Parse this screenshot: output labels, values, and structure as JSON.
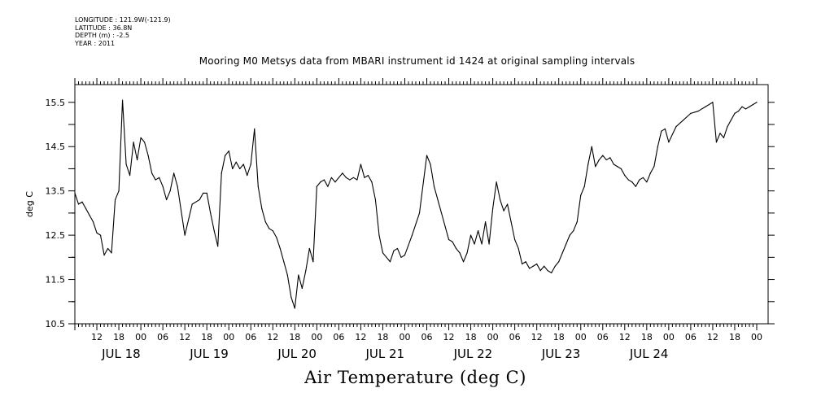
{
  "meta": {
    "longitude": "LONGITUDE : 121.9W(-121.9)",
    "latitude": "LATITUDE : 36.8N",
    "depth": "DEPTH (m) : -2.5",
    "year": "YEAR : 2011"
  },
  "chart_data": {
    "type": "line",
    "title": "Mooring M0 Metsys data from MBARI instrument id 1424 at original sampling intervals",
    "footer_title": "Air Temperature (deg C)",
    "ylabel": "deg C",
    "xlabel": "",
    "ylim": [
      10.5,
      15.9
    ],
    "xlim": [
      "2011-07-17 06:00",
      "2011-07-25 00:00"
    ],
    "yticks": [
      "10.5",
      "11.5",
      "12.5",
      "13.5",
      "14.5",
      "15.5"
    ],
    "xticks_hour": [
      {
        "t": "2011-07-17 12:00",
        "label": "12"
      },
      {
        "t": "2011-07-17 18:00",
        "label": "18"
      },
      {
        "t": "2011-07-18 00:00",
        "label": "00"
      },
      {
        "t": "2011-07-18 06:00",
        "label": "06"
      },
      {
        "t": "2011-07-18 12:00",
        "label": "12"
      },
      {
        "t": "2011-07-18 18:00",
        "label": "18"
      },
      {
        "t": "2011-07-19 00:00",
        "label": "00"
      },
      {
        "t": "2011-07-19 06:00",
        "label": "06"
      },
      {
        "t": "2011-07-19 12:00",
        "label": "12"
      },
      {
        "t": "2011-07-19 18:00",
        "label": "18"
      },
      {
        "t": "2011-07-20 00:00",
        "label": "00"
      },
      {
        "t": "2011-07-20 06:00",
        "label": "06"
      },
      {
        "t": "2011-07-20 12:00",
        "label": "12"
      },
      {
        "t": "2011-07-20 18:00",
        "label": "18"
      },
      {
        "t": "2011-07-21 00:00",
        "label": "00"
      },
      {
        "t": "2011-07-21 06:00",
        "label": "06"
      },
      {
        "t": "2011-07-21 12:00",
        "label": "12"
      },
      {
        "t": "2011-07-21 18:00",
        "label": "18"
      },
      {
        "t": "2011-07-22 00:00",
        "label": "00"
      },
      {
        "t": "2011-07-22 06:00",
        "label": "06"
      },
      {
        "t": "2011-07-22 12:00",
        "label": "12"
      },
      {
        "t": "2011-07-22 18:00",
        "label": "18"
      },
      {
        "t": "2011-07-23 00:00",
        "label": "00"
      },
      {
        "t": "2011-07-23 06:00",
        "label": "06"
      },
      {
        "t": "2011-07-23 12:00",
        "label": "12"
      },
      {
        "t": "2011-07-23 18:00",
        "label": "18"
      },
      {
        "t": "2011-07-24 00:00",
        "label": "00"
      },
      {
        "t": "2011-07-24 06:00",
        "label": "06"
      },
      {
        "t": "2011-07-24 12:00",
        "label": "12"
      },
      {
        "t": "2011-07-24 18:00",
        "label": "18"
      },
      {
        "t": "2011-07-25 00:00",
        "label": "00"
      }
    ],
    "xticks_day": [
      {
        "t": "2011-07-18 00:00",
        "label": "JUL 18"
      },
      {
        "t": "2011-07-19 00:00",
        "label": "JUL 19"
      },
      {
        "t": "2011-07-20 00:00",
        "label": "JUL 20"
      },
      {
        "t": "2011-07-21 00:00",
        "label": "JUL 21"
      },
      {
        "t": "2011-07-22 00:00",
        "label": "JUL 22"
      },
      {
        "t": "2011-07-23 00:00",
        "label": "JUL 23"
      },
      {
        "t": "2011-07-24 00:00",
        "label": "JUL 24"
      }
    ],
    "series": [
      {
        "color": "#000000",
        "x": [
          "2011-07-17 06:00",
          "2011-07-17 07:00",
          "2011-07-17 08:00",
          "2011-07-17 09:00",
          "2011-07-17 10:00",
          "2011-07-17 11:00",
          "2011-07-17 12:00",
          "2011-07-17 13:00",
          "2011-07-17 14:00",
          "2011-07-17 15:00",
          "2011-07-17 16:00",
          "2011-07-17 17:00",
          "2011-07-17 18:00",
          "2011-07-17 19:00",
          "2011-07-17 20:00",
          "2011-07-17 21:00",
          "2011-07-17 22:00",
          "2011-07-17 23:00",
          "2011-07-18 00:00",
          "2011-07-18 01:00",
          "2011-07-18 02:00",
          "2011-07-18 03:00",
          "2011-07-18 04:00",
          "2011-07-18 05:00",
          "2011-07-18 06:00",
          "2011-07-18 07:00",
          "2011-07-18 08:00",
          "2011-07-18 09:00",
          "2011-07-18 10:00",
          "2011-07-18 12:00",
          "2011-07-18 14:00",
          "2011-07-18 16:00",
          "2011-07-18 17:00",
          "2011-07-18 18:00",
          "2011-07-18 19:00",
          "2011-07-18 20:00",
          "2011-07-18 21:00",
          "2011-07-18 22:00",
          "2011-07-18 23:00",
          "2011-07-19 00:00",
          "2011-07-19 01:00",
          "2011-07-19 02:00",
          "2011-07-19 03:00",
          "2011-07-19 04:00",
          "2011-07-19 05:00",
          "2011-07-19 06:00",
          "2011-07-19 07:00",
          "2011-07-19 08:00",
          "2011-07-19 09:00",
          "2011-07-19 10:00",
          "2011-07-19 11:00",
          "2011-07-19 12:00",
          "2011-07-19 13:00",
          "2011-07-19 14:00",
          "2011-07-19 15:00",
          "2011-07-19 16:00",
          "2011-07-19 17:00",
          "2011-07-19 18:00",
          "2011-07-19 19:00",
          "2011-07-19 20:00",
          "2011-07-19 21:00",
          "2011-07-19 22:00",
          "2011-07-19 23:00",
          "2011-07-20 00:00",
          "2011-07-20 01:00",
          "2011-07-20 02:00",
          "2011-07-20 03:00",
          "2011-07-20 04:00",
          "2011-07-20 05:00",
          "2011-07-20 06:00",
          "2011-07-20 07:00",
          "2011-07-20 08:00",
          "2011-07-20 09:00",
          "2011-07-20 10:00",
          "2011-07-20 11:00",
          "2011-07-20 12:00",
          "2011-07-20 13:00",
          "2011-07-20 14:00",
          "2011-07-20 15:00",
          "2011-07-20 16:00",
          "2011-07-20 17:00",
          "2011-07-20 18:00",
          "2011-07-20 19:00",
          "2011-07-20 20:00",
          "2011-07-20 21:00",
          "2011-07-20 22:00",
          "2011-07-20 23:00",
          "2011-07-21 00:00",
          "2011-07-21 02:00",
          "2011-07-21 04:00",
          "2011-07-21 06:00",
          "2011-07-21 07:00",
          "2011-07-21 08:00",
          "2011-07-21 09:00",
          "2011-07-21 10:00",
          "2011-07-21 11:00",
          "2011-07-21 12:00",
          "2011-07-21 13:00",
          "2011-07-21 14:00",
          "2011-07-21 15:00",
          "2011-07-21 16:00",
          "2011-07-21 17:00",
          "2011-07-21 18:00",
          "2011-07-21 19:00",
          "2011-07-21 20:00",
          "2011-07-21 21:00",
          "2011-07-21 22:00",
          "2011-07-21 23:00",
          "2011-07-22 00:00",
          "2011-07-22 01:00",
          "2011-07-22 02:00",
          "2011-07-22 03:00",
          "2011-07-22 04:00",
          "2011-07-22 05:00",
          "2011-07-22 06:00",
          "2011-07-22 07:00",
          "2011-07-22 08:00",
          "2011-07-22 09:00",
          "2011-07-22 10:00",
          "2011-07-22 11:00",
          "2011-07-22 12:00",
          "2011-07-22 13:00",
          "2011-07-22 14:00",
          "2011-07-22 15:00",
          "2011-07-22 16:00",
          "2011-07-22 17:00",
          "2011-07-22 18:00",
          "2011-07-22 19:00",
          "2011-07-22 20:00",
          "2011-07-22 21:00",
          "2011-07-22 22:00",
          "2011-07-22 23:00",
          "2011-07-23 00:00",
          "2011-07-23 01:00",
          "2011-07-23 02:00",
          "2011-07-23 03:00",
          "2011-07-23 04:00",
          "2011-07-23 05:00",
          "2011-07-23 06:00",
          "2011-07-23 07:00",
          "2011-07-23 08:00",
          "2011-07-23 09:00",
          "2011-07-23 10:00",
          "2011-07-23 11:00",
          "2011-07-23 12:00",
          "2011-07-23 13:00",
          "2011-07-23 14:00",
          "2011-07-23 15:00",
          "2011-07-23 16:00",
          "2011-07-23 17:00",
          "2011-07-23 18:00",
          "2011-07-23 19:00",
          "2011-07-23 20:00",
          "2011-07-23 21:00",
          "2011-07-23 22:00",
          "2011-07-23 23:00",
          "2011-07-24 00:00",
          "2011-07-24 02:00",
          "2011-07-24 04:00",
          "2011-07-24 06:00",
          "2011-07-24 08:00",
          "2011-07-24 10:00",
          "2011-07-24 12:00",
          "2011-07-24 13:00",
          "2011-07-24 14:00",
          "2011-07-24 15:00",
          "2011-07-24 16:00",
          "2011-07-24 17:00",
          "2011-07-24 18:00",
          "2011-07-24 19:00",
          "2011-07-24 20:00",
          "2011-07-24 21:00",
          "2011-07-24 22:00",
          "2011-07-24 23:00",
          "2011-07-25 00:00"
        ],
        "values": [
          13.45,
          13.2,
          13.25,
          13.1,
          12.95,
          12.8,
          12.55,
          12.5,
          12.05,
          12.2,
          12.1,
          13.3,
          13.5,
          15.55,
          14.1,
          13.85,
          14.6,
          14.2,
          14.7,
          14.6,
          14.3,
          13.9,
          13.75,
          13.8,
          13.6,
          13.3,
          13.5,
          13.9,
          13.6,
          12.5,
          13.2,
          13.3,
          13.45,
          13.45,
          13.0,
          12.6,
          12.25,
          13.9,
          14.3,
          14.4,
          14.0,
          14.15,
          14.0,
          14.1,
          13.85,
          14.1,
          14.9,
          13.6,
          13.1,
          12.8,
          12.65,
          12.6,
          12.45,
          12.2,
          11.9,
          11.6,
          11.1,
          10.85,
          11.6,
          11.3,
          11.7,
          12.2,
          11.9,
          13.6,
          13.7,
          13.75,
          13.6,
          13.8,
          13.7,
          13.8,
          13.9,
          13.8,
          13.75,
          13.8,
          13.75,
          14.1,
          13.8,
          13.85,
          13.7,
          13.3,
          12.5,
          12.1,
          12.0,
          11.9,
          12.15,
          12.2,
          12.0,
          12.05,
          12.5,
          13.0,
          14.3,
          14.1,
          13.6,
          13.3,
          13.0,
          12.7,
          12.4,
          12.35,
          12.2,
          12.1,
          11.9,
          12.1,
          12.5,
          12.3,
          12.6,
          12.3,
          12.8,
          12.3,
          13.1,
          13.7,
          13.3,
          13.05,
          13.2,
          12.8,
          12.4,
          12.2,
          11.85,
          11.9,
          11.75,
          11.8,
          11.85,
          11.7,
          11.8,
          11.7,
          11.65,
          11.8,
          11.9,
          12.1,
          12.3,
          12.5,
          12.6,
          12.8,
          13.4,
          13.6,
          14.1,
          14.5,
          14.05,
          14.2,
          14.3,
          14.2,
          14.25,
          14.1,
          14.05,
          14.0,
          13.85,
          13.75,
          13.7,
          13.6,
          13.75,
          13.8,
          13.7,
          13.9,
          14.05,
          14.5,
          14.85,
          14.9,
          14.6,
          14.95,
          15.1,
          15.25,
          15.3,
          15.4,
          15.5,
          14.6,
          14.8,
          14.7,
          14.95,
          15.1,
          15.25,
          15.3,
          15.4,
          15.35,
          15.4,
          15.45,
          15.5
        ]
      }
    ]
  }
}
